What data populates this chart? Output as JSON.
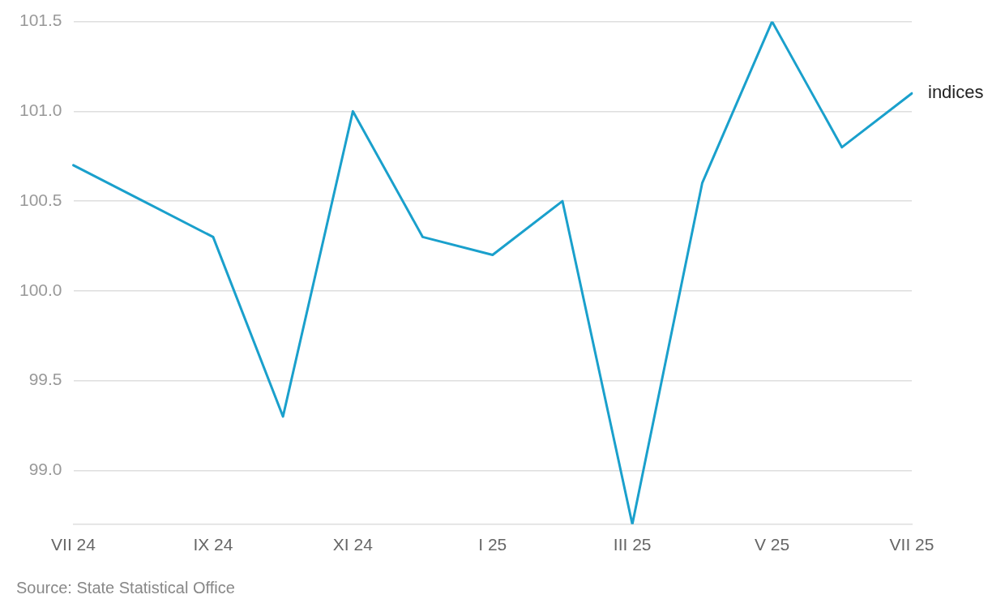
{
  "chart_data": {
    "type": "line",
    "categories": [
      "VII 24",
      null,
      "IX 24",
      null,
      "XI 24",
      null,
      "I 25",
      null,
      "III 25",
      null,
      "V 25",
      null,
      "VII 25"
    ],
    "series": [
      {
        "name": "indices",
        "color": "#1aa0cc",
        "values": [
          100.7,
          100.5,
          100.3,
          99.3,
          101.0,
          100.3,
          100.2,
          100.5,
          98.7,
          100.6,
          101.5,
          100.8,
          101.1
        ]
      }
    ],
    "ylim": [
      98.7,
      101.5
    ],
    "yticks": [
      {
        "value": 99,
        "label": "99.0"
      },
      99.5,
      {
        "value": 100,
        "label": "100.0"
      },
      100.5,
      {
        "value": 101,
        "label": "101.0"
      },
      101.5
    ],
    "grid": "y",
    "legend": false,
    "marker": "none",
    "line_style": "solid",
    "annotations": [
      "Source: State Statistical Office"
    ]
  }
}
